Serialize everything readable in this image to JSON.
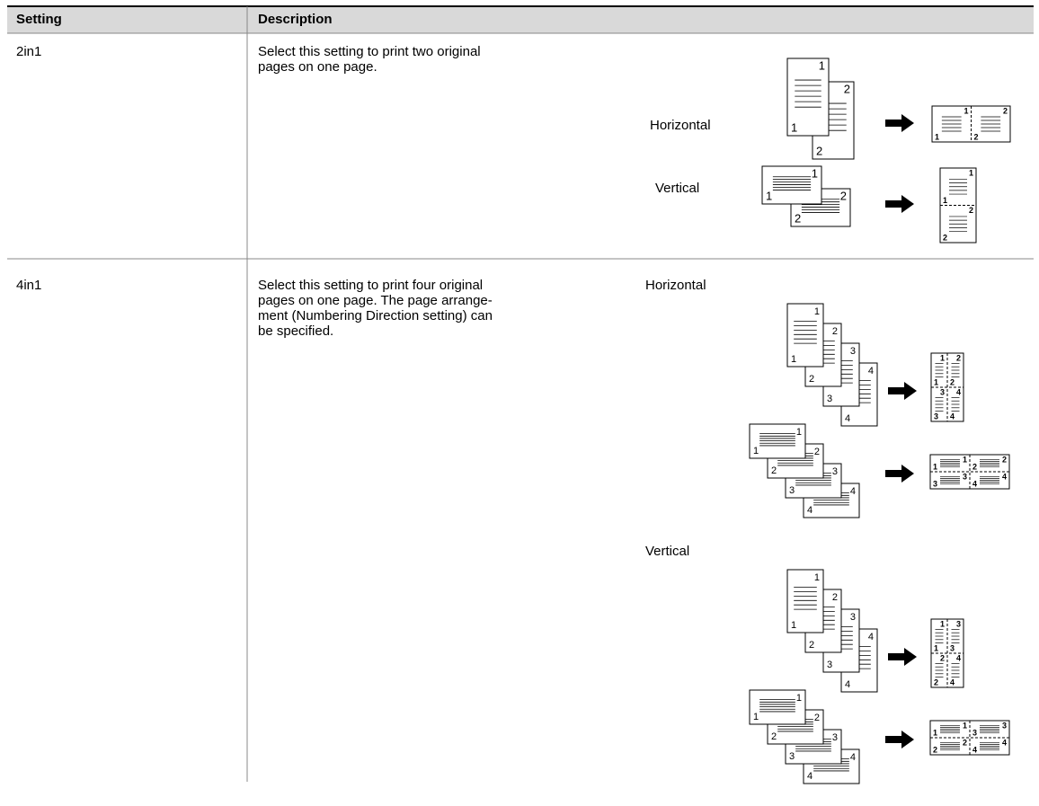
{
  "table": {
    "header": [
      "Setting",
      "Description"
    ],
    "rows": [
      {
        "setting": "2in1",
        "description": [
          "Select this setting to print two original",
          "pages on one page."
        ],
        "labels": [
          "Horizontal",
          "Vertical"
        ]
      },
      {
        "setting": "4in1",
        "description": [
          "Select this setting to print four original",
          "pages on one page. The page arrange-",
          "ment (Numbering Direction setting) can",
          "be specified."
        ],
        "labels": [
          "Horizontal",
          "Vertical"
        ]
      }
    ]
  },
  "page_numbers": [
    "1",
    "2",
    "3",
    "4"
  ]
}
